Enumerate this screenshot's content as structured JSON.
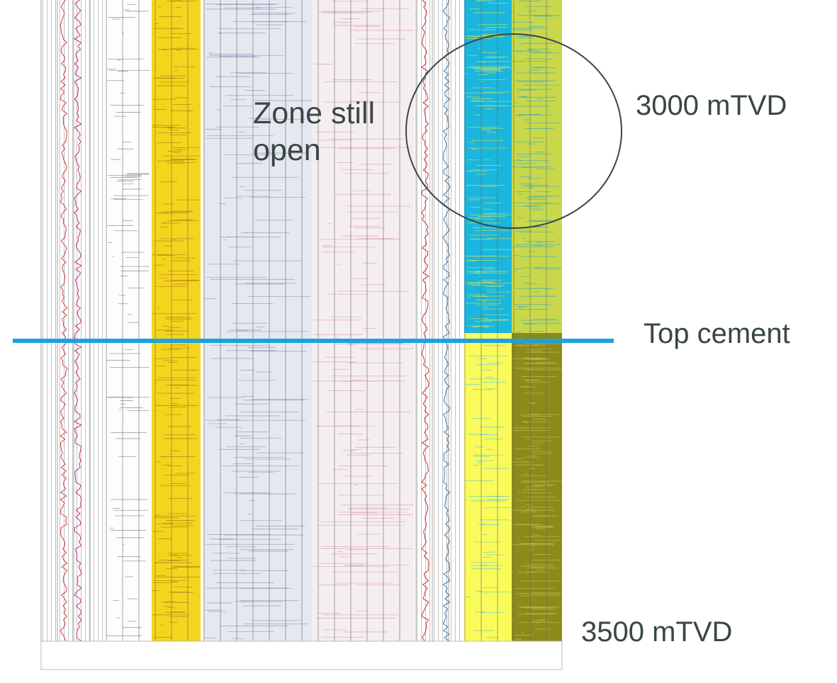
{
  "annotations": {
    "zone": "Zone still open",
    "depth_top": "3000 mTVD",
    "cement": "Top cement",
    "depth_bottom": "3500 mTVD"
  }
}
